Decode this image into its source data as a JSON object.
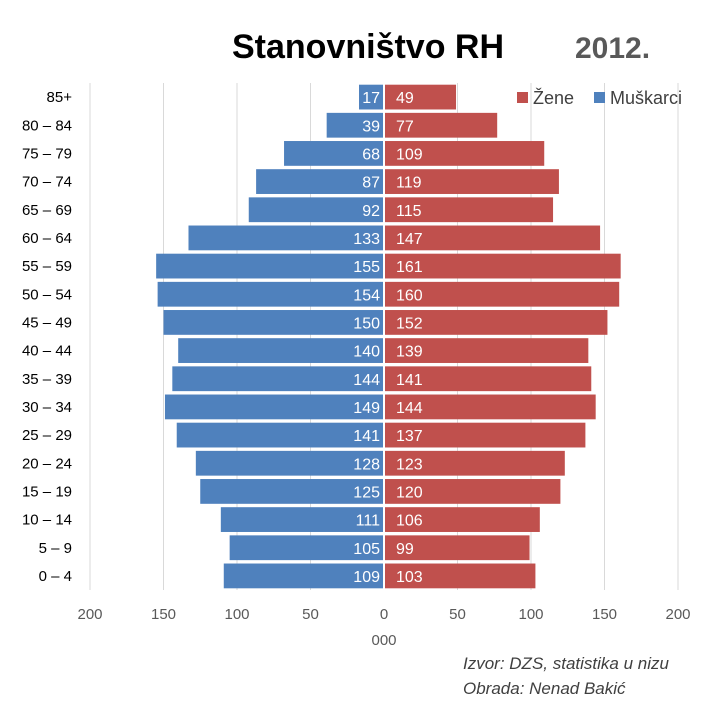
{
  "chart_data": {
    "type": "bar",
    "orientation": "horizontal",
    "title": "Stanovništvo RH",
    "subtitle": "2012.",
    "xlabel": "000",
    "xlim": [
      -200,
      200
    ],
    "xticks": [
      -200,
      -150,
      -100,
      -50,
      0,
      50,
      100,
      150,
      200
    ],
    "xtick_labels": [
      "200",
      "150",
      "100",
      "50",
      "0",
      "50",
      "100",
      "150",
      "200"
    ],
    "grid": "vertical",
    "legend_position": "top-right",
    "categories": [
      "0 – 4",
      "5 – 9",
      "10 – 14",
      "15 – 19",
      "20 – 24",
      "25 – 29",
      "30 – 34",
      "35 – 39",
      "40 – 44",
      "45 – 49",
      "50 – 54",
      "55 – 59",
      "60 – 64",
      "65 – 69",
      "70 – 74",
      "75 – 79",
      "80 – 84",
      "85+"
    ],
    "series": [
      {
        "name": "Žene",
        "color": "#c0504d",
        "side": "right",
        "values": [
          103,
          99,
          106,
          120,
          123,
          137,
          144,
          141,
          139,
          152,
          160,
          161,
          147,
          115,
          119,
          109,
          77,
          49
        ]
      },
      {
        "name": "Muškarci",
        "color": "#4f81bd",
        "side": "left",
        "values": [
          109,
          105,
          111,
          125,
          128,
          141,
          149,
          144,
          140,
          150,
          154,
          155,
          133,
          92,
          87,
          68,
          39,
          17
        ]
      }
    ],
    "source_note": "Izvor: DZS, statistika u nizu",
    "author_note": "Obrada: Nenad Bakić"
  }
}
